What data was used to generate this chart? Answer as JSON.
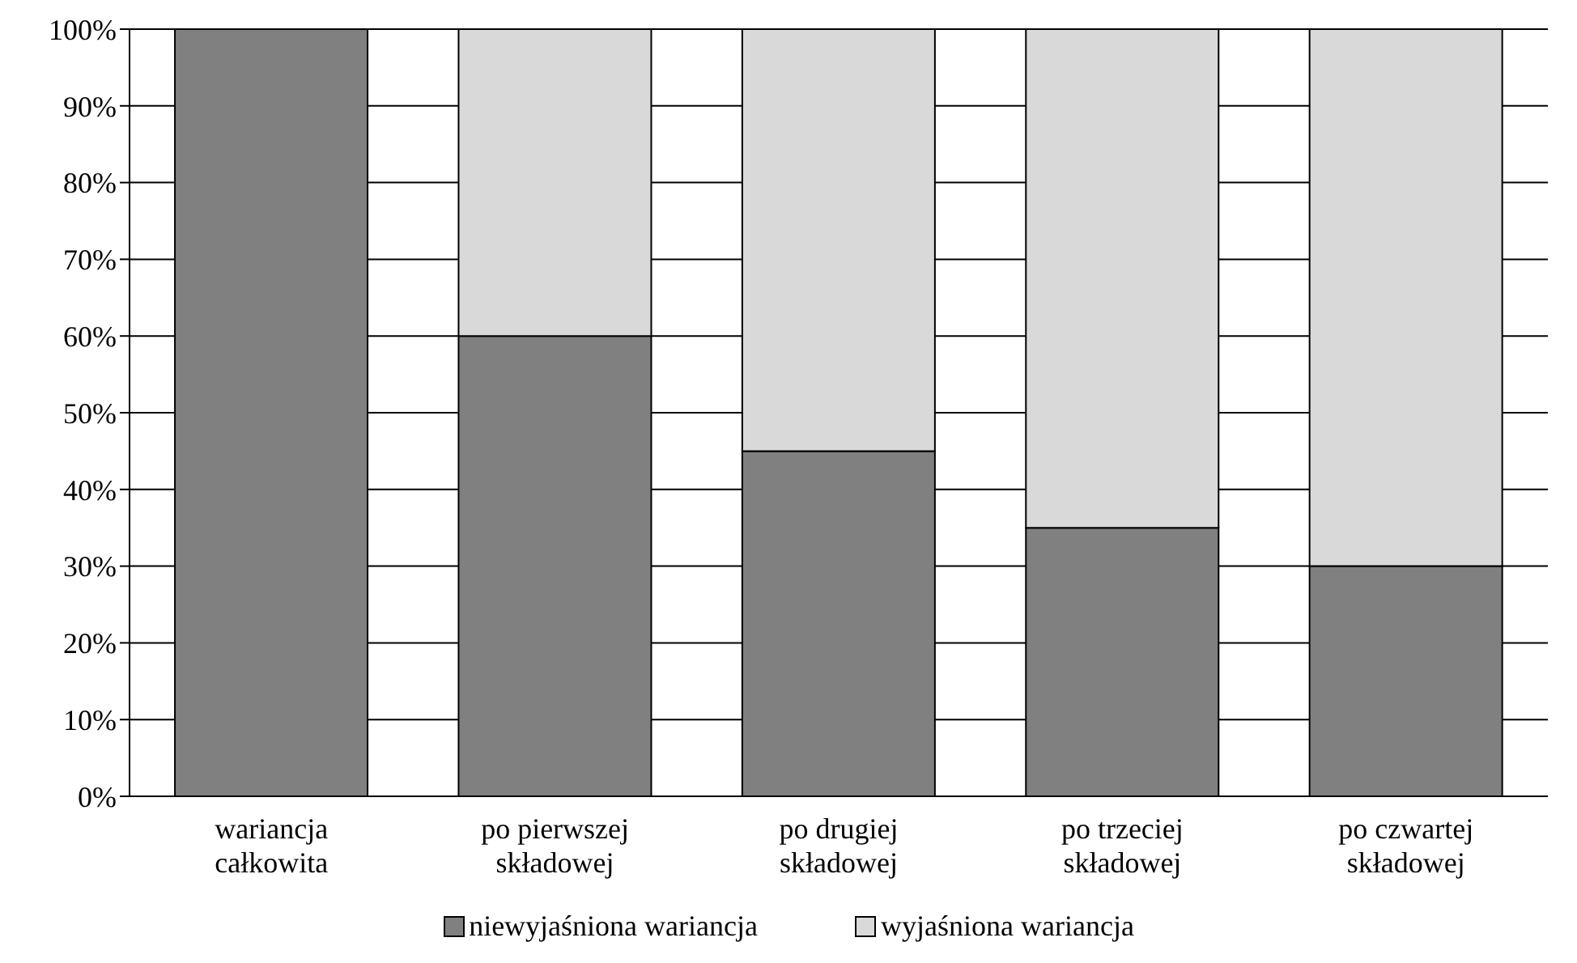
{
  "chart_data": {
    "type": "bar",
    "stacked": true,
    "categories": [
      "wariancja całkowita",
      "po pierwszej składowej",
      "po drugiej składowej",
      "po trzeciej składowej",
      "po czwartej składowej"
    ],
    "series": [
      {
        "name": "niewyjaśniona wariancja",
        "color": "#808080",
        "values": [
          100,
          60,
          45,
          35,
          30
        ]
      },
      {
        "name": "wyjaśniona wariancja",
        "color": "#d9d9d9",
        "values": [
          0,
          40,
          55,
          65,
          70
        ]
      }
    ],
    "ylim": [
      0,
      100
    ],
    "yticks": [
      {
        "value": 0,
        "label": "0%"
      },
      {
        "value": 10,
        "label": "10%"
      },
      {
        "value": 20,
        "label": "20%"
      },
      {
        "value": 30,
        "label": "30%"
      },
      {
        "value": 40,
        "label": "40%"
      },
      {
        "value": 50,
        "label": "50%"
      },
      {
        "value": 60,
        "label": "60%"
      },
      {
        "value": 70,
        "label": "70%"
      },
      {
        "value": 80,
        "label": "80%"
      },
      {
        "value": 90,
        "label": "90%"
      },
      {
        "value": 100,
        "label": "100%"
      }
    ],
    "grid": "y",
    "legend": "bottom"
  }
}
